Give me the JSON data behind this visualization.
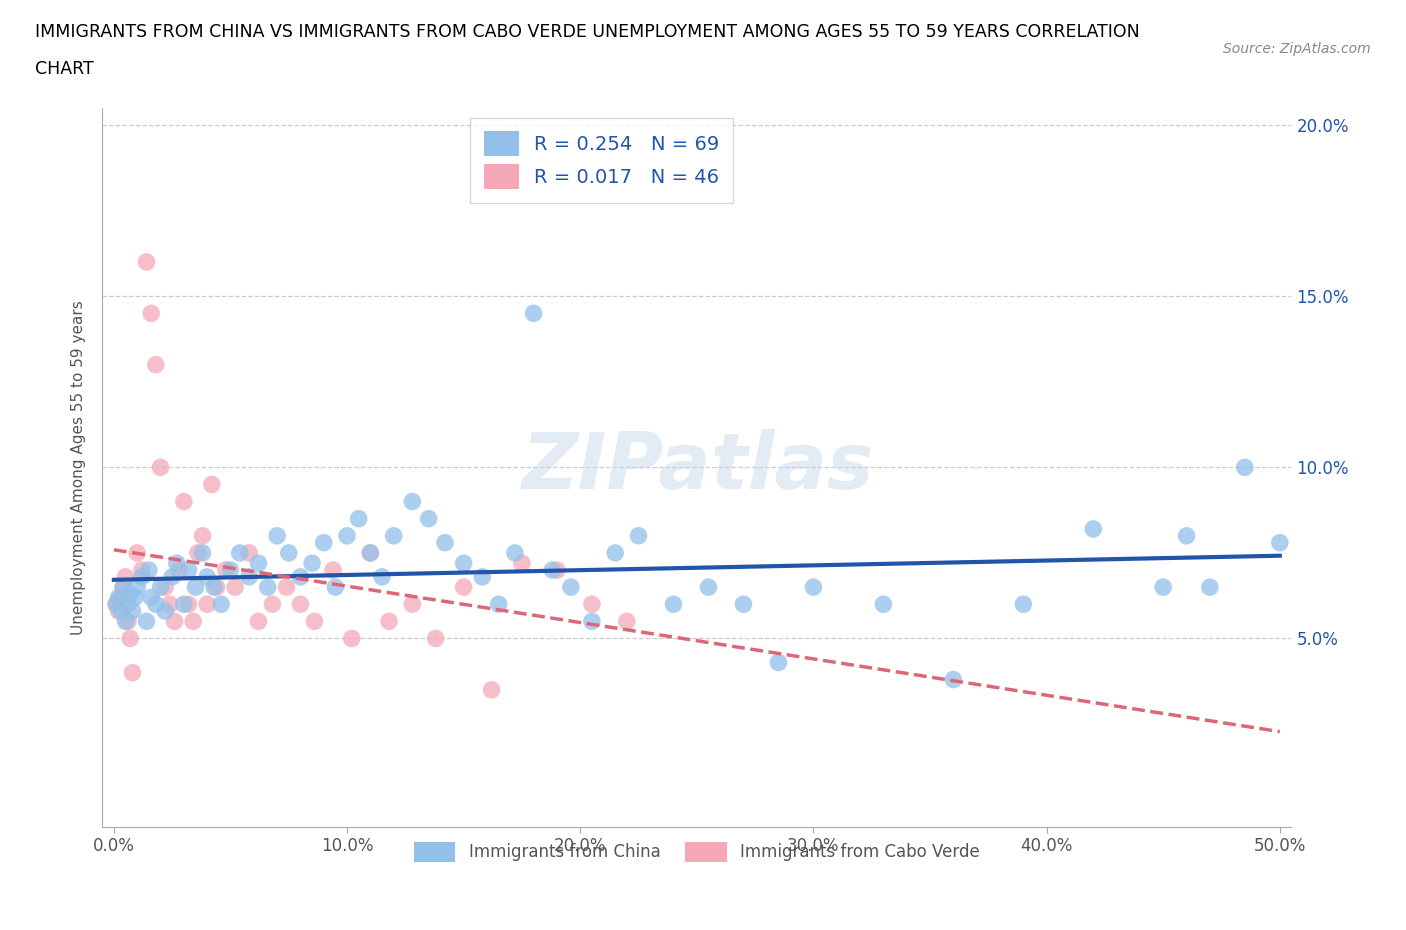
{
  "title_line1": "IMMIGRANTS FROM CHINA VS IMMIGRANTS FROM CABO VERDE UNEMPLOYMENT AMONG AGES 55 TO 59 YEARS CORRELATION",
  "title_line2": "CHART",
  "source": "Source: ZipAtlas.com",
  "ylabel": "Unemployment Among Ages 55 to 59 years",
  "xlim": [
    -0.005,
    0.505
  ],
  "ylim": [
    -0.005,
    0.205
  ],
  "xticks": [
    0.0,
    0.1,
    0.2,
    0.3,
    0.4,
    0.5
  ],
  "yticks": [
    0.0,
    0.05,
    0.1,
    0.15,
    0.2
  ],
  "xtick_labels": [
    "0.0%",
    "10.0%",
    "20.0%",
    "30.0%",
    "40.0%",
    "50.0%"
  ],
  "ytick_labels_right": [
    "",
    "5.0%",
    "10.0%",
    "15.0%",
    "20.0%"
  ],
  "china_R": 0.254,
  "china_N": 69,
  "caboverde_R": 0.017,
  "caboverde_N": 46,
  "china_color": "#92C0EA",
  "caboverde_color": "#F4A8B8",
  "china_line_color": "#2255AA",
  "caboverde_line_color": "#DD6677",
  "trend_text_color": "#2255AA",
  "background_color": "#FFFFFF",
  "china_x": [
    0.001,
    0.002,
    0.003,
    0.004,
    0.005,
    0.006,
    0.007,
    0.008,
    0.009,
    0.01,
    0.012,
    0.014,
    0.015,
    0.016,
    0.018,
    0.02,
    0.022,
    0.025,
    0.027,
    0.03,
    0.032,
    0.035,
    0.038,
    0.04,
    0.043,
    0.046,
    0.05,
    0.054,
    0.058,
    0.062,
    0.066,
    0.07,
    0.075,
    0.08,
    0.085,
    0.09,
    0.095,
    0.1,
    0.105,
    0.11,
    0.115,
    0.12,
    0.128,
    0.135,
    0.142,
    0.15,
    0.158,
    0.165,
    0.172,
    0.18,
    0.188,
    0.196,
    0.205,
    0.215,
    0.225,
    0.24,
    0.255,
    0.27,
    0.285,
    0.3,
    0.33,
    0.36,
    0.39,
    0.42,
    0.45,
    0.46,
    0.47,
    0.485,
    0.5
  ],
  "china_y": [
    0.06,
    0.062,
    0.058,
    0.065,
    0.055,
    0.06,
    0.063,
    0.058,
    0.062,
    0.065,
    0.068,
    0.055,
    0.07,
    0.062,
    0.06,
    0.065,
    0.058,
    0.068,
    0.072,
    0.06,
    0.07,
    0.065,
    0.075,
    0.068,
    0.065,
    0.06,
    0.07,
    0.075,
    0.068,
    0.072,
    0.065,
    0.08,
    0.075,
    0.068,
    0.072,
    0.078,
    0.065,
    0.08,
    0.085,
    0.075,
    0.068,
    0.08,
    0.09,
    0.085,
    0.078,
    0.072,
    0.068,
    0.06,
    0.075,
    0.145,
    0.07,
    0.065,
    0.055,
    0.075,
    0.08,
    0.06,
    0.065,
    0.06,
    0.043,
    0.065,
    0.06,
    0.038,
    0.06,
    0.082,
    0.065,
    0.08,
    0.065,
    0.1,
    0.078
  ],
  "caboverde_x": [
    0.001,
    0.002,
    0.003,
    0.004,
    0.005,
    0.006,
    0.007,
    0.008,
    0.01,
    0.012,
    0.014,
    0.016,
    0.018,
    0.02,
    0.022,
    0.024,
    0.026,
    0.028,
    0.03,
    0.032,
    0.034,
    0.036,
    0.038,
    0.04,
    0.042,
    0.044,
    0.048,
    0.052,
    0.058,
    0.062,
    0.068,
    0.074,
    0.08,
    0.086,
    0.094,
    0.102,
    0.11,
    0.118,
    0.128,
    0.138,
    0.15,
    0.162,
    0.175,
    0.19,
    0.205,
    0.22
  ],
  "caboverde_y": [
    0.06,
    0.058,
    0.062,
    0.065,
    0.068,
    0.055,
    0.05,
    0.04,
    0.075,
    0.07,
    0.16,
    0.145,
    0.13,
    0.1,
    0.065,
    0.06,
    0.055,
    0.07,
    0.09,
    0.06,
    0.055,
    0.075,
    0.08,
    0.06,
    0.095,
    0.065,
    0.07,
    0.065,
    0.075,
    0.055,
    0.06,
    0.065,
    0.06,
    0.055,
    0.07,
    0.05,
    0.075,
    0.055,
    0.06,
    0.05,
    0.065,
    0.035,
    0.072,
    0.07,
    0.06,
    0.055
  ]
}
